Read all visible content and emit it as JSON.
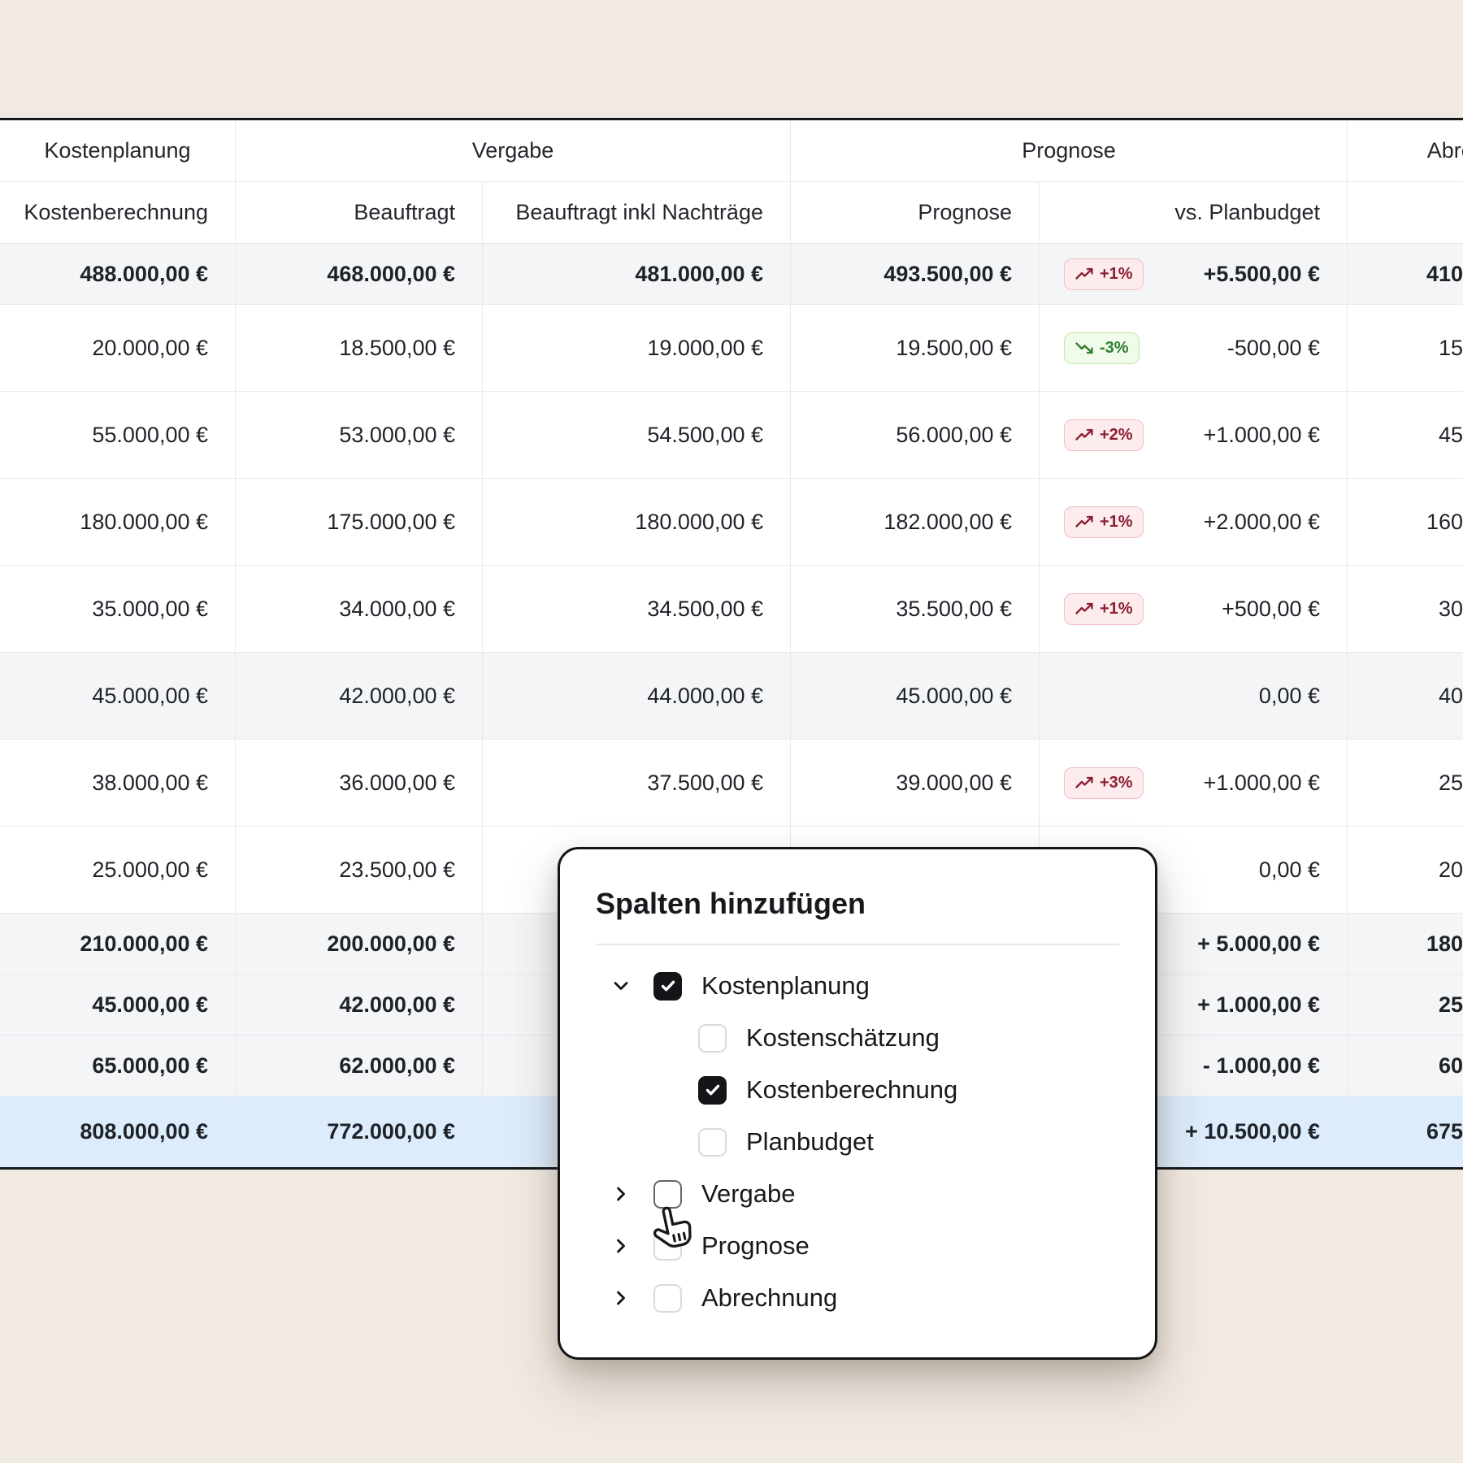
{
  "colors": {
    "page_bg": "#f1eae2",
    "table_bg": "#ffffff",
    "border_dark": "#17191c",
    "grid_line": "#e7e9ec",
    "shaded_row_bg": "#f4f5f7",
    "total_row_bg": "#dcecfa",
    "badge_up_bg": "#fdeced",
    "badge_up_border": "#f3bcc0",
    "badge_up_text": "#8c1e31",
    "badge_down_bg": "#f1fbe9",
    "badge_down_border": "#bcea9e",
    "badge_down_text": "#2e7d32"
  },
  "table": {
    "groups": [
      {
        "label": "Kostenplanung",
        "span": 1
      },
      {
        "label": "Vergabe",
        "span": 2
      },
      {
        "label": "Prognose",
        "span": 2
      },
      {
        "label": "Abrechnung",
        "span": 1
      }
    ],
    "columns": [
      "Kostenberechnung",
      "Beauftragt",
      "Beauftragt inkl Nachträge",
      "Prognose",
      "vs. Planbudget",
      ""
    ],
    "rows": [
      {
        "kind": "subtotal",
        "cells": [
          "488.000,00 €",
          "468.000,00 €",
          "481.000,00 €",
          "493.500,00 €"
        ],
        "badge": {
          "trend": "up",
          "label": "+1%"
        },
        "vs_planbudget": "+5.500,00 €",
        "abrechnung": "410"
      },
      {
        "kind": "item",
        "cells": [
          "20.000,00 €",
          "18.500,00 €",
          "19.000,00 €",
          "19.500,00 €"
        ],
        "badge": {
          "trend": "down",
          "label": "-3%"
        },
        "vs_planbudget": "-500,00 €",
        "abrechnung": "15"
      },
      {
        "kind": "item",
        "cells": [
          "55.000,00 €",
          "53.000,00 €",
          "54.500,00 €",
          "56.000,00 €"
        ],
        "badge": {
          "trend": "up",
          "label": "+2%"
        },
        "vs_planbudget": "+1.000,00 €",
        "abrechnung": "45"
      },
      {
        "kind": "item",
        "cells": [
          "180.000,00 €",
          "175.000,00 €",
          "180.000,00 €",
          "182.000,00 €"
        ],
        "badge": {
          "trend": "up",
          "label": "+1%"
        },
        "vs_planbudget": "+2.000,00 €",
        "abrechnung": "160"
      },
      {
        "kind": "item",
        "cells": [
          "35.000,00 €",
          "34.000,00 €",
          "34.500,00 €",
          "35.500,00 €"
        ],
        "badge": {
          "trend": "up",
          "label": "+1%"
        },
        "vs_planbudget": "+500,00 €",
        "abrechnung": "30"
      },
      {
        "kind": "item-shaded",
        "cells": [
          "45.000,00 €",
          "42.000,00 €",
          "44.000,00 €",
          "45.000,00 €"
        ],
        "badge": null,
        "vs_planbudget": "0,00 €",
        "abrechnung": "40"
      },
      {
        "kind": "item",
        "cells": [
          "38.000,00 €",
          "36.000,00 €",
          "37.500,00 €",
          "39.000,00 €"
        ],
        "badge": {
          "trend": "up",
          "label": "+3%"
        },
        "vs_planbudget": "+1.000,00 €",
        "abrechnung": "25"
      },
      {
        "kind": "item",
        "cells": [
          "25.000,00 €",
          "23.500,00 €",
          "",
          ""
        ],
        "badge": null,
        "vs_planbudget": "0,00 €",
        "abrechnung": "20"
      },
      {
        "kind": "subtotal",
        "cells": [
          "210.000,00 €",
          "200.000,00 €",
          "",
          ""
        ],
        "badge": null,
        "vs_planbudget": "+ 5.000,00 €",
        "abrechnung": "180"
      },
      {
        "kind": "subtotal",
        "cells": [
          "45.000,00 €",
          "42.000,00 €",
          "",
          ""
        ],
        "badge": null,
        "vs_planbudget": "+ 1.000,00 €",
        "abrechnung": "25"
      },
      {
        "kind": "subtotal",
        "cells": [
          "65.000,00 €",
          "62.000,00 €",
          "",
          ""
        ],
        "badge": null,
        "vs_planbudget": "- 1.000,00 €",
        "abrechnung": "60"
      },
      {
        "kind": "total",
        "cells": [
          "808.000,00 €",
          "772.000,00 €",
          "",
          ""
        ],
        "badge": null,
        "vs_planbudget": "+ 10.500,00 €",
        "abrechnung": "675"
      }
    ]
  },
  "popup": {
    "title": "Spalten hinzufügen",
    "items": [
      {
        "label": "Kostenplanung",
        "level": 0,
        "chevron": "down",
        "checked": true,
        "hover": false
      },
      {
        "label": "Kostenschätzung",
        "level": 1,
        "chevron": null,
        "checked": false,
        "hover": false
      },
      {
        "label": "Kostenberechnung",
        "level": 1,
        "chevron": null,
        "checked": true,
        "hover": false
      },
      {
        "label": "Planbudget",
        "level": 1,
        "chevron": null,
        "checked": false,
        "hover": false
      },
      {
        "label": "Vergabe",
        "level": 0,
        "chevron": "right",
        "checked": false,
        "hover": true
      },
      {
        "label": "Prognose",
        "level": 0,
        "chevron": "right",
        "checked": false,
        "hover": false
      },
      {
        "label": "Abrechnung",
        "level": 0,
        "chevron": "right",
        "checked": false,
        "hover": false
      }
    ]
  }
}
